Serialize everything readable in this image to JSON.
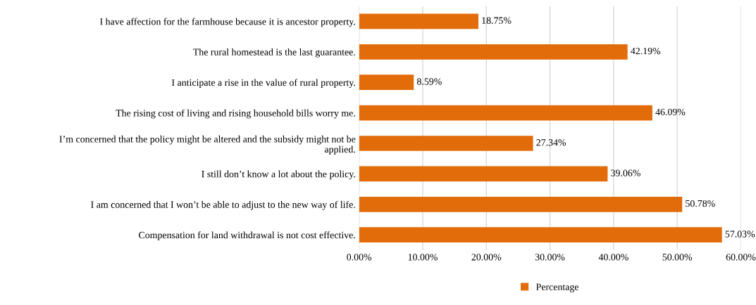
{
  "chart_data": {
    "type": "bar",
    "orientation": "horizontal",
    "categories": [
      "I have affection for the farmhouse because it is ancestor property.",
      "The rural homestead is the last guarantee.",
      "I anticipate a rise in the value of rural property.",
      "The rising cost of living and rising household bills worry me.",
      "I’m concerned that the policy might be altered and the subsidy might not be\napplied.",
      "I still don’t know a lot about the policy.",
      "I am concerned that I won’t be able to adjust to the new way of life.",
      "Compensation for land withdrawal is not cost effective."
    ],
    "series": [
      {
        "name": "Percentage",
        "color": "#e36c0a",
        "values": [
          18.75,
          42.19,
          8.59,
          46.09,
          27.34,
          39.06,
          50.78,
          57.03
        ],
        "value_labels": [
          "18.75%",
          "42.19%",
          "8.59%",
          "46.09%",
          "27.34%",
          "39.06%",
          "50.78%",
          "57.03%"
        ]
      }
    ],
    "xlim": [
      0,
      60
    ],
    "xticks": [
      {
        "value": 0,
        "label": "0.00%"
      },
      {
        "value": 10,
        "label": "10.00%"
      },
      {
        "value": 20,
        "label": "20.00%"
      },
      {
        "value": 30,
        "label": "30.00%"
      },
      {
        "value": 40,
        "label": "40.00%"
      },
      {
        "value": 50,
        "label": "50.00%"
      },
      {
        "value": 60,
        "label": "60.00%"
      }
    ],
    "grid": "x",
    "legend": "bottom"
  }
}
